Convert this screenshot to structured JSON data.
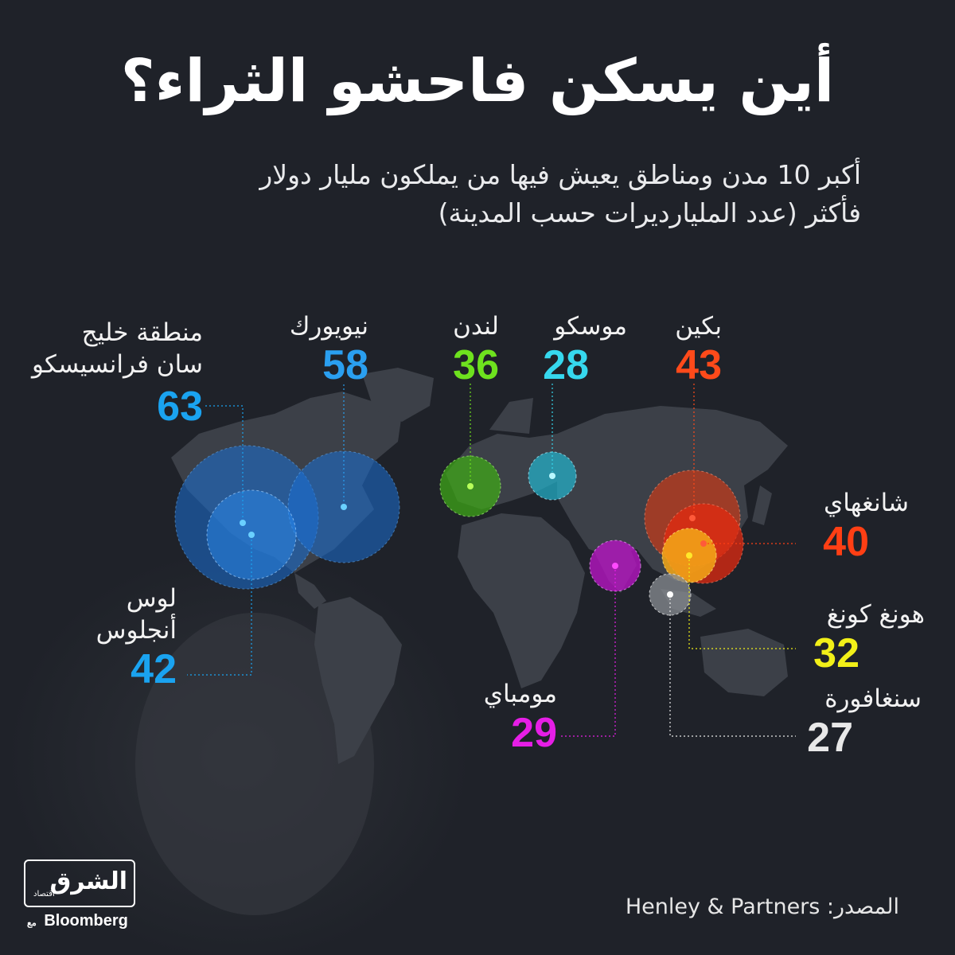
{
  "title": "أين يسكن فاحشو الثراء؟",
  "subtitle_line1": "أكبر 10 مدن ومناطق يعيش فيها من يملكون مليار دولار",
  "subtitle_line2": "فأكثر (عدد المليارديرات حسب المدينة)",
  "cities": [
    {
      "name": "منطقة خليج",
      "name2": "سان فرانسيسكو",
      "value": "63",
      "color": "#1aa3f0"
    },
    {
      "name": "نيويورك",
      "value": "58",
      "color": "#2a9ff0"
    },
    {
      "name": "لندن",
      "value": "36",
      "color": "#6ee21e"
    },
    {
      "name": "موسكو",
      "value": "28",
      "color": "#36d8ee"
    },
    {
      "name": "بكين",
      "value": "43",
      "color": "#ff4a1a"
    },
    {
      "name": "شانغهاي",
      "value": "40",
      "color": "#ff3f14"
    },
    {
      "name": "هونغ كونغ",
      "value": "32",
      "color": "#f2f018"
    },
    {
      "name": "سنغافورة",
      "value": "27",
      "color": "#e8e8e8"
    },
    {
      "name": "مومباي",
      "value": "29",
      "color": "#e61ee6"
    },
    {
      "name": "لوس",
      "name2": "أنجلوس",
      "value": "42",
      "color": "#1aa3f0"
    }
  ],
  "source": "المصدر: Henley & Partners",
  "logo": {
    "main": "الشرق",
    "sub": "اقتصاد",
    "with": "مع",
    "bloomberg": "Bloomberg"
  }
}
